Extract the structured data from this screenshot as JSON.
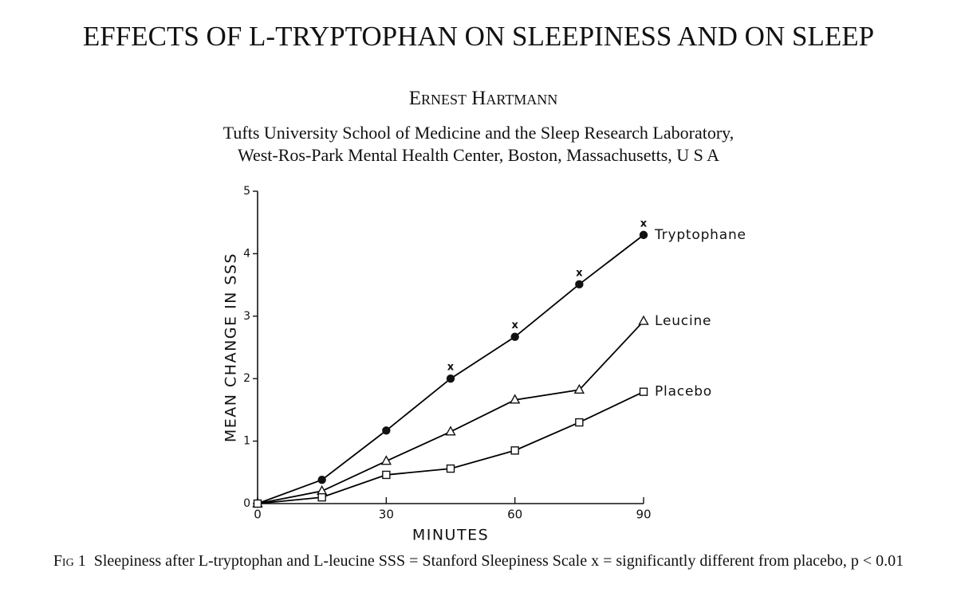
{
  "header": {
    "title": "EFFECTS OF L-TRYPTOPHAN ON SLEEPINESS AND ON SLEEP",
    "author": "Ernest Hartmann",
    "affiliation": [
      "Tufts University School of Medicine and the Sleep Research Laboratory,",
      "West-Ros-Park Mental Health Center, Boston, Massachusetts, U S A"
    ]
  },
  "chart_data": {
    "type": "line",
    "xlabel": "MINUTES",
    "ylabel": "MEAN CHANGE IN SSS",
    "x": [
      0,
      15,
      30,
      45,
      60,
      75,
      90
    ],
    "series": [
      {
        "name": "Tryptophane",
        "marker": "circle",
        "color": "#000000",
        "values": [
          0,
          0.38,
          1.17,
          2.0,
          2.67,
          3.51,
          4.3
        ]
      },
      {
        "name": "Leucine",
        "marker": "triangle",
        "color": "#000000",
        "values": [
          0,
          0.2,
          0.68,
          1.15,
          1.66,
          1.82,
          2.92
        ]
      },
      {
        "name": "Placebo",
        "marker": "square",
        "color": "#000000",
        "values": [
          0,
          0.1,
          0.46,
          0.56,
          0.85,
          1.3,
          1.79
        ]
      }
    ],
    "significance_mark": "x",
    "significant_x": [
      45,
      60,
      75,
      90
    ],
    "xlim": [
      0,
      90
    ],
    "xticks": [
      0,
      30,
      60,
      90
    ],
    "ylim": [
      0,
      5
    ],
    "yticks": [
      0,
      1,
      2,
      3,
      4,
      5
    ],
    "grid": false
  },
  "caption": {
    "label": "Fig 1",
    "text": "Sleepiness after L-tryptophan and L-leucine SSS = Stanford Sleepiness Scale x = significantly different from placebo, p < 0.01"
  }
}
